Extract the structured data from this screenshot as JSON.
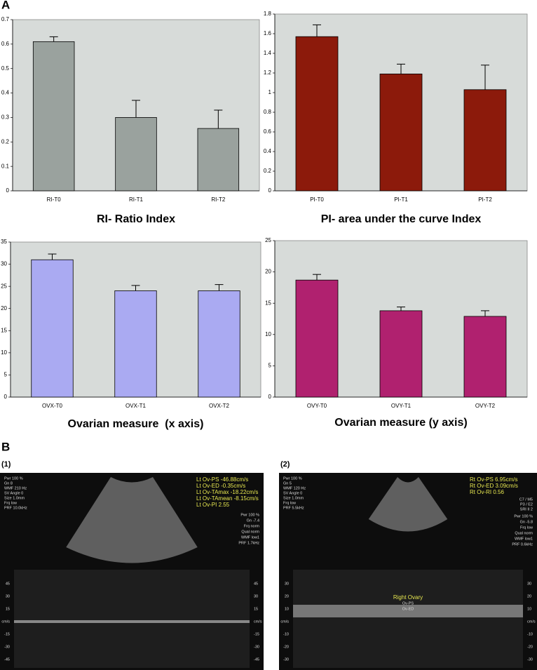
{
  "figure": {
    "panel_a": "A",
    "panel_b": "B"
  },
  "chart_data": [
    {
      "type": "bar",
      "title": "RI- Ratio Index",
      "categories": [
        "RI-T0",
        "RI-T1",
        "RI-T2"
      ],
      "values": [
        0.61,
        0.3,
        0.255
      ],
      "errors": [
        0.02,
        0.07,
        0.075
      ],
      "color": "#9aa29e",
      "ylim": [
        0,
        0.7
      ],
      "yticks": [
        0,
        0.1,
        0.2,
        0.3,
        0.4,
        0.5,
        0.6,
        0.7
      ]
    },
    {
      "type": "bar",
      "title": "PI- area under the curve Index",
      "categories": [
        "PI-T0",
        "PI-T1",
        "PI-T2"
      ],
      "values": [
        1.57,
        1.19,
        1.03
      ],
      "errors": [
        0.12,
        0.1,
        0.25
      ],
      "color": "#8c1a0b",
      "ylim": [
        0,
        1.8
      ],
      "yticks": [
        0,
        0.2,
        0.4,
        0.6,
        0.8,
        1,
        1.2,
        1.4,
        1.6,
        1.8
      ]
    },
    {
      "type": "bar",
      "title": "Ovarian measure  (x axis)",
      "categories": [
        "OVX-T0",
        "OVX-T1",
        "OVX-T2"
      ],
      "values": [
        31,
        24,
        24
      ],
      "errors": [
        1.3,
        1.2,
        1.4
      ],
      "color": "#aaaaf2",
      "ylim": [
        0,
        35
      ],
      "yticks": [
        0,
        5,
        10,
        15,
        20,
        25,
        30,
        35
      ]
    },
    {
      "type": "bar",
      "title": "Ovarian measure (y axis)",
      "categories": [
        "OVY-T0",
        "OVY-T1",
        "OVY-T2"
      ],
      "values": [
        18.7,
        13.8,
        12.9
      ],
      "errors": [
        0.9,
        0.6,
        0.9
      ],
      "color": "#b0216f",
      "ylim": [
        0,
        25
      ],
      "yticks": [
        0,
        5,
        10,
        15,
        20,
        25
      ]
    }
  ],
  "ultrasound": [
    {
      "label": "(1)",
      "settings": [
        "Pwr 100 %",
        "Gn 8",
        "WMF 210 Hz",
        "SV Angle 0",
        "Size 1.0mm",
        "Frq low",
        "PRF 10.0kHz"
      ],
      "measurements": [
        "Lt Ov-PS -46.88cm/s",
        "Lt Ov-ED -0.35cm/s",
        "Lt Ov-TAmax -18.22cm/s",
        "Lt Ov-TAmean -8.15cm/s",
        "Lt Ov-PI 2.55"
      ],
      "settings_right": [
        "Pwr 100 %",
        "Gn -7.4",
        "Frq norm",
        "Qual norm",
        "WMF low1",
        "PRF 1.7kHz"
      ],
      "scale": [
        "45",
        "30",
        "15",
        "cm/s",
        "-15",
        "-30",
        "-45"
      ]
    },
    {
      "label": "(2)",
      "settings": [
        "Pwr 100 %",
        "Gn 5",
        "WMF 120 Hz",
        "SV Angle 0",
        "Size 1.0mm",
        "Frq low",
        "PRF 5.5kHz"
      ],
      "measurements": [
        "Rt Ov-PS 6.95cm/s",
        "Rt Ov-ED 3.09cm/s",
        "Rt Ov-RI 0.56"
      ],
      "probe": [
        "C7 / M5",
        "P3 / E2",
        "SRI II 2"
      ],
      "settings_right": [
        "Pwr 100 %",
        "Gn -5.8",
        "Frq low",
        "Qual norm",
        "WMF low1",
        "PRF 0.6kHz"
      ],
      "scale": [
        "30",
        "20",
        "10",
        "cm/s",
        "-10",
        "-20",
        "-30"
      ],
      "annotations": [
        "Right Ovary",
        "Ov-PS",
        "Ov-ED"
      ]
    }
  ]
}
